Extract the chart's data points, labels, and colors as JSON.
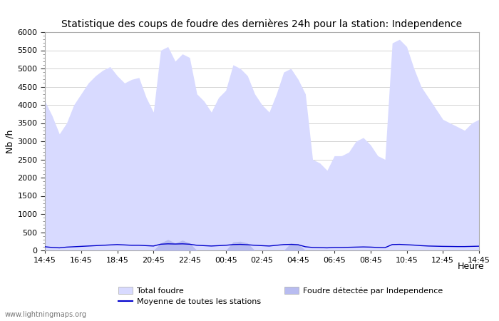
{
  "title": "Statistique des coups de foudre des dernières 24h pour la station: Independence",
  "ylabel": "Nb /h",
  "ylim": [
    0,
    6000
  ],
  "yticks": [
    0,
    500,
    1000,
    1500,
    2000,
    2500,
    3000,
    3500,
    4000,
    4500,
    5000,
    5500,
    6000
  ],
  "xtick_labels": [
    "14:45",
    "16:45",
    "18:45",
    "20:45",
    "22:45",
    "00:45",
    "02:45",
    "04:45",
    "06:45",
    "08:45",
    "10:45",
    "12:45",
    "14:45"
  ],
  "fill_color_total": "#d8daff",
  "fill_color_local": "#b8bcf0",
  "line_color_moyenne": "#0000cc",
  "watermark": "www.lightningmaps.org",
  "legend_total": "Total foudre",
  "legend_moyenne": "Moyenne de toutes les stations",
  "legend_local": "Foudre détectée par Independence",
  "xlabel_right": "Heure",
  "total_foudre": [
    4100,
    3700,
    3200,
    3500,
    4000,
    4300,
    4600,
    4800,
    4950,
    5050,
    4800,
    4600,
    4700,
    4750,
    4200,
    3800,
    5500,
    5600,
    5200,
    5400,
    5300,
    4300,
    4100,
    3800,
    4200,
    4400,
    5100,
    5000,
    4800,
    4300,
    4000,
    3800,
    4300,
    4900,
    5000,
    4700,
    4300,
    2500,
    2400,
    2200,
    2600,
    2600,
    2700,
    3000,
    3100,
    2900,
    2600,
    2500,
    5700,
    5800,
    5600,
    5000,
    4500,
    4200,
    3900,
    3600,
    3500,
    3400,
    3300,
    3500,
    3600
  ],
  "local_foudre": [
    0,
    0,
    0,
    0,
    0,
    0,
    0,
    0,
    0,
    0,
    0,
    0,
    0,
    0,
    0,
    0,
    200,
    300,
    200,
    280,
    200,
    0,
    0,
    0,
    0,
    0,
    230,
    250,
    200,
    0,
    0,
    0,
    0,
    0,
    200,
    180,
    0,
    0,
    0,
    0,
    0,
    0,
    0,
    0,
    0,
    0,
    0,
    0,
    0,
    0,
    0,
    0,
    0,
    0,
    0,
    0,
    0,
    0,
    0,
    0,
    0
  ],
  "moyenne": [
    100,
    80,
    70,
    90,
    100,
    110,
    120,
    130,
    140,
    150,
    160,
    150,
    140,
    140,
    130,
    120,
    170,
    180,
    175,
    180,
    170,
    140,
    130,
    120,
    130,
    140,
    160,
    165,
    155,
    140,
    130,
    120,
    140,
    160,
    165,
    155,
    100,
    80,
    75,
    70,
    80,
    80,
    85,
    90,
    95,
    90,
    80,
    75,
    160,
    165,
    155,
    145,
    130,
    120,
    115,
    110,
    108,
    105,
    105,
    110,
    115
  ]
}
